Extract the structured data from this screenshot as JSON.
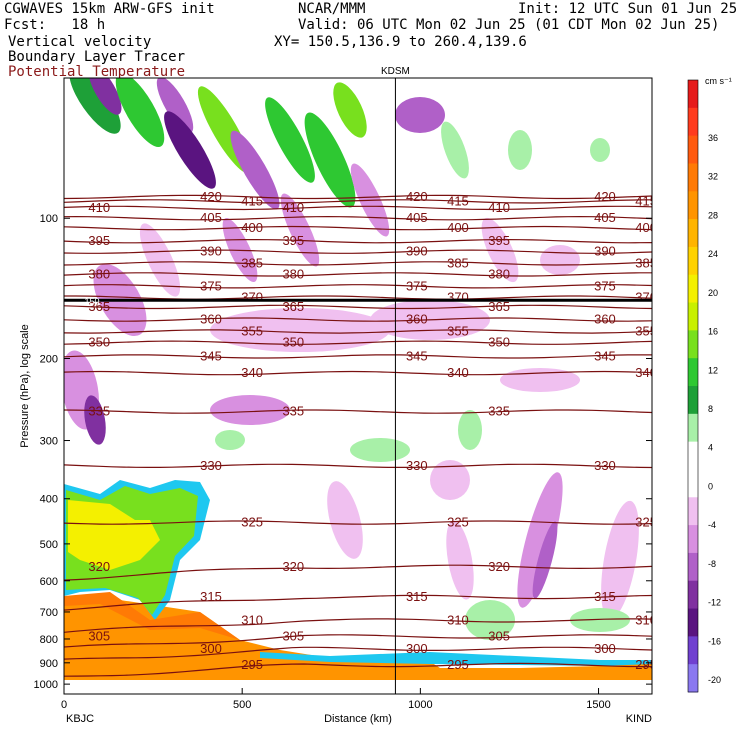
{
  "header": {
    "model": "CGWAVES 15km ARW-GFS init",
    "org": "NCAR/MMM",
    "init": "Init: 12 UTC Sun 01 Jun 25",
    "fcst": "Fcst:   18 h",
    "valid": "Valid: 06 UTC Mon 02 Jun 25 (01 CDT Mon 02 Jun 25)",
    "field1": "Vertical velocity",
    "xy": "XY= 150.5,136.9 to 260.4,139.6",
    "field2": "Boundary Layer Tracer",
    "field3": "Potential Temperature"
  },
  "colors": {
    "theta": "#7a1010",
    "axis": "#000000"
  },
  "chart_data": {
    "type": "heatmap",
    "title": "",
    "xlabel": "Distance (km)",
    "ylabel": "Pressure (hPa), log scale",
    "xlim": [
      0,
      1650
    ],
    "ylim": [
      1000,
      50
    ],
    "y_scale": "log",
    "x_ticks": [
      "0",
      "500",
      "1000",
      "1500"
    ],
    "y_ticks": [
      "100",
      "200",
      "300",
      "400",
      "500",
      "600",
      "700",
      "800",
      "900",
      "1000"
    ],
    "endpoints": {
      "left": "KBJC",
      "right": "KIND",
      "marker": "KDSM"
    },
    "marker_x_km": 930,
    "colorbar": {
      "units": "cm s⁻¹",
      "labels": [
        "36",
        "32",
        "28",
        "24",
        "20",
        "16",
        "12",
        "8",
        "4",
        "0",
        "-4",
        "-8",
        "-12",
        "-16",
        "-20"
      ],
      "colors": [
        "#e61b1b",
        "#ff3b1e",
        "#ff5a0f",
        "#ff7a05",
        "#ff9400",
        "#ffb400",
        "#ffd200",
        "#f4f000",
        "#c8f000",
        "#78e01e",
        "#2ec832",
        "#1ea038",
        "#a8f0a8",
        "#ffffff",
        "#ffffff",
        "#f0c0f0",
        "#d890e0",
        "#b060c8",
        "#8030a0",
        "#5a1480",
        "#7040d0",
        "#8a78f0"
      ]
    },
    "theta_contours": [
      {
        "label": "420",
        "p": 90
      },
      {
        "label": "415",
        "p": 92
      },
      {
        "label": "410",
        "p": 95
      },
      {
        "label": "405",
        "p": 100
      },
      {
        "label": "400",
        "p": 105
      },
      {
        "label": "395",
        "p": 112
      },
      {
        "label": "390",
        "p": 118
      },
      {
        "label": "385",
        "p": 125
      },
      {
        "label": "380",
        "p": 132
      },
      {
        "label": "375",
        "p": 140
      },
      {
        "label": "370",
        "p": 148
      },
      {
        "label": "365",
        "p": 155
      },
      {
        "label": "360",
        "p": 165
      },
      {
        "label": "355",
        "p": 175
      },
      {
        "label": "350",
        "p": 185
      },
      {
        "label": "345",
        "p": 198
      },
      {
        "label": "340",
        "p": 215
      },
      {
        "label": "335",
        "p": 260
      },
      {
        "label": "330",
        "p": 340
      },
      {
        "label": "325",
        "p": 450
      },
      {
        "label": "320",
        "p": 560
      },
      {
        "label": "315",
        "p": 650
      },
      {
        "label": "310",
        "p": 730
      },
      {
        "label": "305",
        "p": 790
      },
      {
        "label": "300",
        "p": 840
      },
      {
        "label": "295",
        "p": 910
      }
    ],
    "tropopause_label": "150"
  }
}
